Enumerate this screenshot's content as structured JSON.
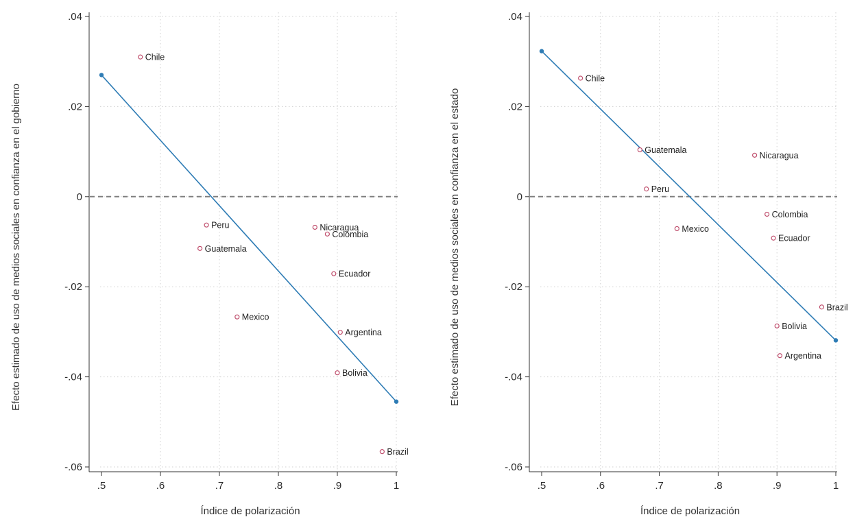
{
  "chart_data": [
    {
      "type": "scatter",
      "xlabel": "Índice de polarización",
      "ylabel": "Efecto estimado de uso de medios sociales en confianza en el gobierno",
      "xlim": [
        0.5,
        1.0
      ],
      "ylim": [
        -0.06,
        0.04
      ],
      "xticks": [
        0.5,
        0.6,
        0.7,
        0.8,
        0.9,
        1.0
      ],
      "xtick_labels": [
        ".5",
        ".6",
        ".7",
        ".8",
        ".9",
        "1"
      ],
      "yticks": [
        0.04,
        0.02,
        0.0,
        -0.02,
        -0.04,
        -0.06
      ],
      "ytick_labels": [
        ".04",
        ".02",
        "0",
        "-.02",
        "-.04",
        "-.06"
      ],
      "grid": true,
      "reference_line_y": 0,
      "points": [
        {
          "label": "Chile",
          "x": 0.566,
          "y": 0.031
        },
        {
          "label": "Peru",
          "x": 0.678,
          "y": -0.0063
        },
        {
          "label": "Guatemala",
          "x": 0.667,
          "y": -0.0115
        },
        {
          "label": "Mexico",
          "x": 0.73,
          "y": -0.0267
        },
        {
          "label": "Nicaragua",
          "x": 0.862,
          "y": -0.0068
        },
        {
          "label": "Colombia",
          "x": 0.883,
          "y": -0.0083
        },
        {
          "label": "Ecuador",
          "x": 0.894,
          "y": -0.0171
        },
        {
          "label": "Argentina",
          "x": 0.905,
          "y": -0.0301
        },
        {
          "label": "Bolivia",
          "x": 0.9,
          "y": -0.0391
        },
        {
          "label": "Brazil",
          "x": 0.976,
          "y": -0.0566
        }
      ],
      "fit_line": {
        "x": [
          0.5,
          1.0
        ],
        "y": [
          0.027,
          -0.0455
        ]
      },
      "colors": {
        "points": "#c0506e",
        "fit": "#2e7cb5"
      }
    },
    {
      "type": "scatter",
      "xlabel": "Índice de polarización",
      "ylabel": "Efecto estimado de uso de medios sociales en confianza en el estado",
      "xlim": [
        0.5,
        1.0
      ],
      "ylim": [
        -0.06,
        0.04
      ],
      "xticks": [
        0.5,
        0.6,
        0.7,
        0.8,
        0.9,
        1.0
      ],
      "xtick_labels": [
        ".5",
        ".6",
        ".7",
        ".8",
        ".9",
        "1"
      ],
      "yticks": [
        0.04,
        0.02,
        0.0,
        -0.02,
        -0.04,
        -0.06
      ],
      "ytick_labels": [
        ".04",
        ".02",
        "0",
        "-.02",
        "-.04",
        "-.06"
      ],
      "grid": true,
      "reference_line_y": 0,
      "points": [
        {
          "label": "Chile",
          "x": 0.566,
          "y": 0.0263
        },
        {
          "label": "Guatemala",
          "x": 0.667,
          "y": 0.0104
        },
        {
          "label": "Peru",
          "x": 0.678,
          "y": 0.0017
        },
        {
          "label": "Mexico",
          "x": 0.73,
          "y": -0.0071
        },
        {
          "label": "Nicaragua",
          "x": 0.862,
          "y": 0.0092
        },
        {
          "label": "Colombia",
          "x": 0.883,
          "y": -0.0039
        },
        {
          "label": "Ecuador",
          "x": 0.894,
          "y": -0.0092
        },
        {
          "label": "Brazil",
          "x": 0.976,
          "y": -0.0245
        },
        {
          "label": "Bolivia",
          "x": 0.9,
          "y": -0.0287
        },
        {
          "label": "Argentina",
          "x": 0.905,
          "y": -0.0353
        }
      ],
      "fit_line": {
        "x": [
          0.5,
          1.0
        ],
        "y": [
          0.0323,
          -0.0319
        ]
      },
      "colors": {
        "points": "#c0506e",
        "fit": "#2e7cb5"
      }
    }
  ]
}
